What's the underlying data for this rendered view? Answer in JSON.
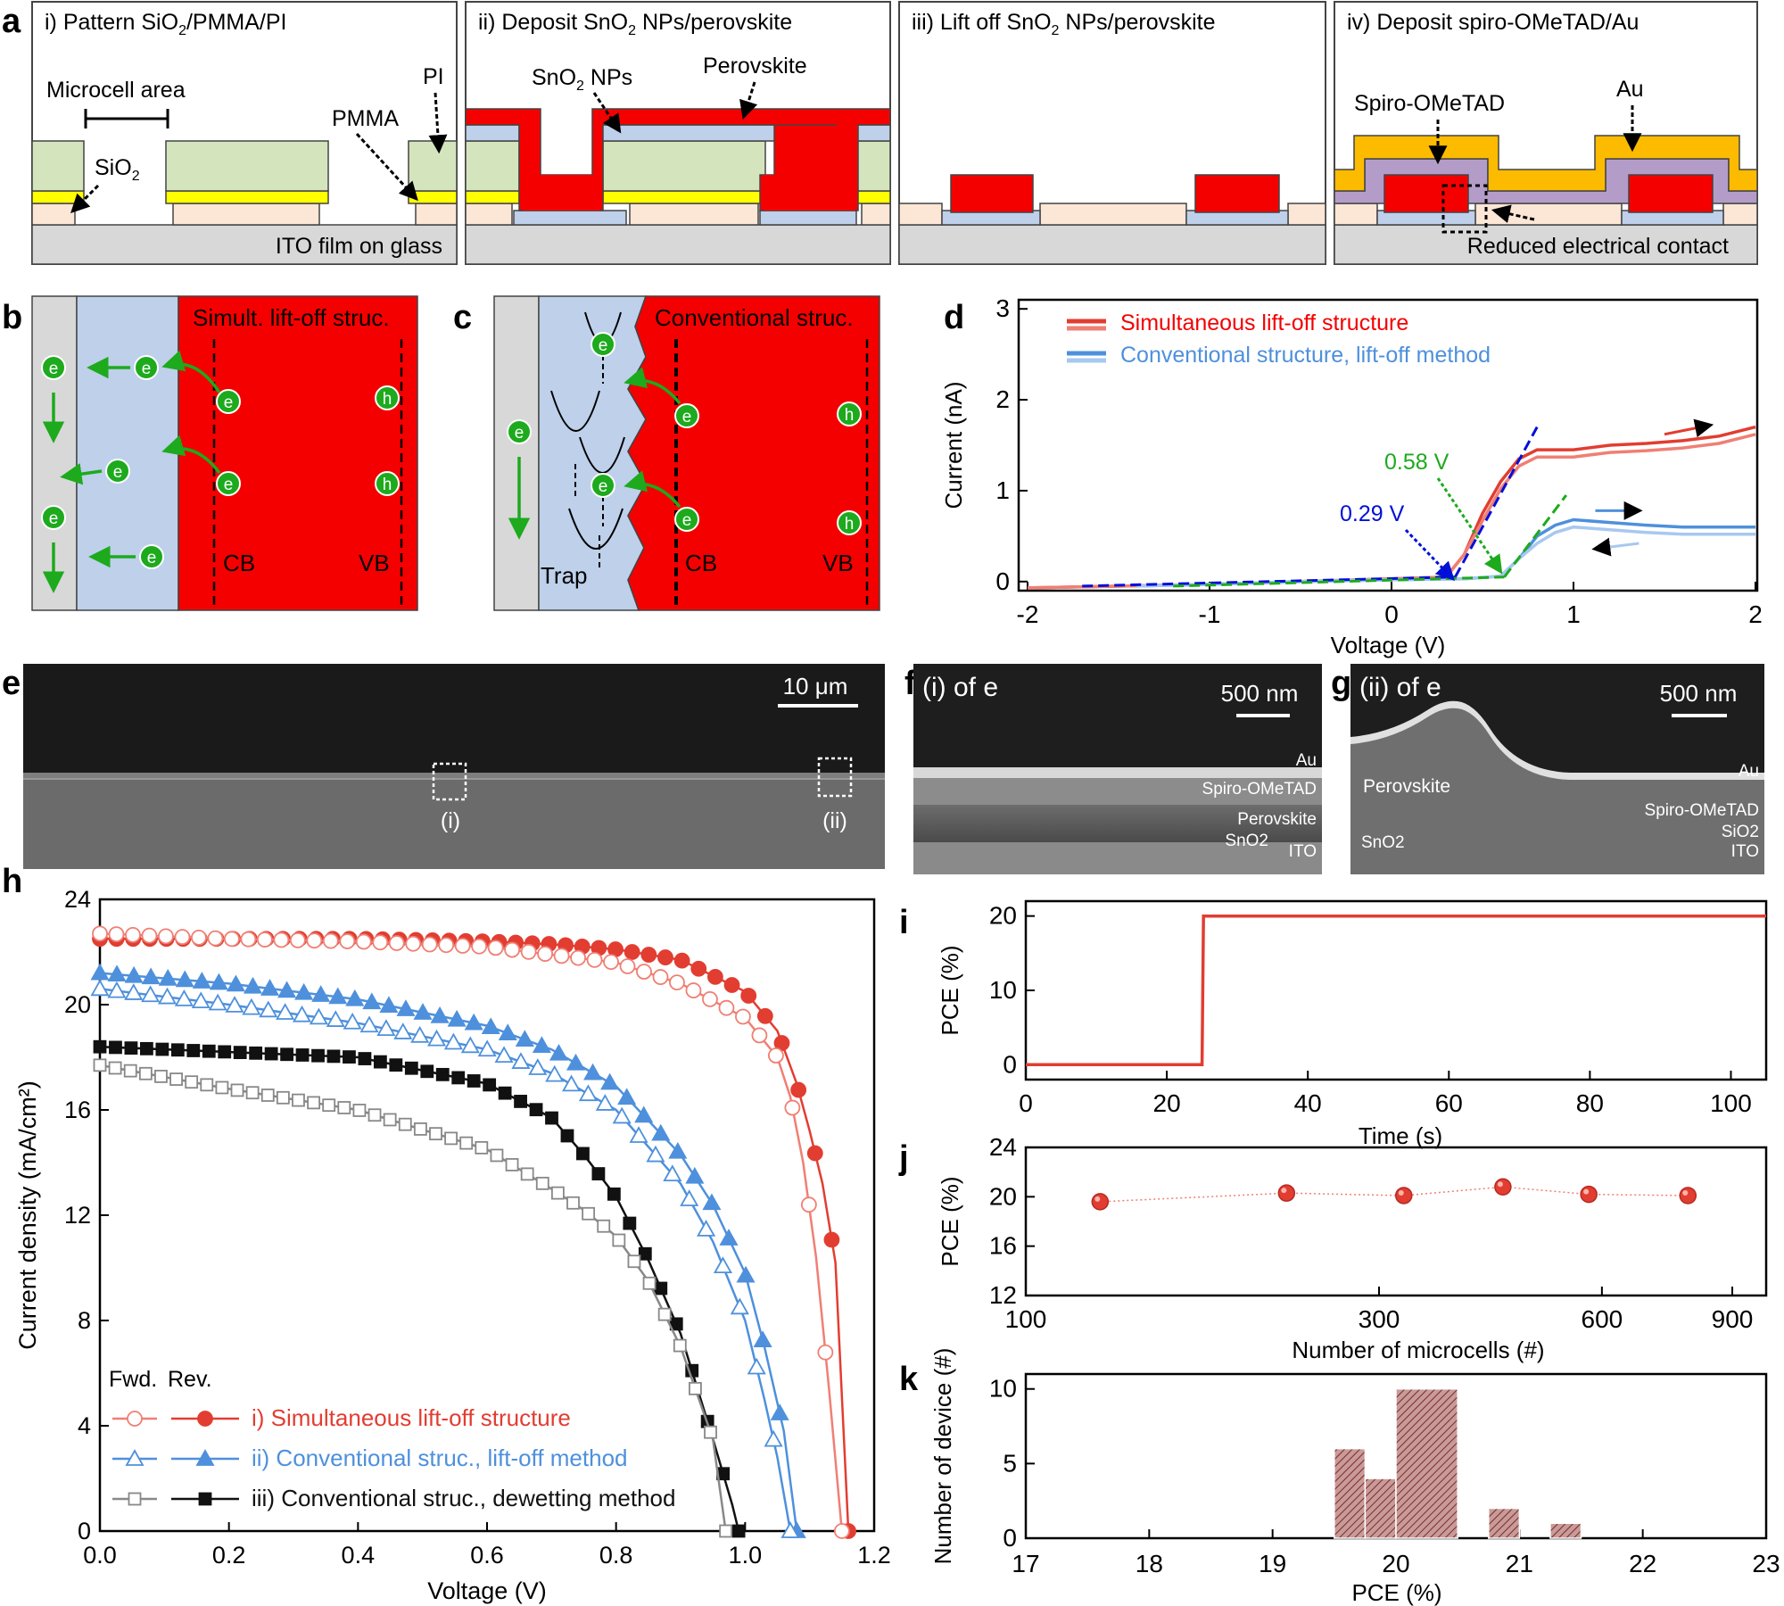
{
  "colors": {
    "red": "#f40000",
    "sio2": "#d4e5bd",
    "yellow": "#ffff00",
    "ito": "#fce6d6",
    "glass": "#d8d8d8",
    "sno2": "#bed0ea",
    "gold": "#fdbb00",
    "spiro": "#b49cc9",
    "green": "#1daa1d",
    "blue_line": "#2b61c8",
    "blue_light": "#6aa4e4",
    "red_dark": "#e23d31",
    "red_light": "#f07f74",
    "gray": "#999999",
    "black": "#111111"
  },
  "panels": {
    "letters": [
      "a",
      "b",
      "c",
      "d",
      "e",
      "f",
      "g",
      "h",
      "i",
      "j",
      "k"
    ],
    "a": {
      "steps": [
        {
          "prefix": "i) Pattern SiO",
          "sub": "2",
          "suffix": "/PMMA/PI"
        },
        {
          "prefix": "ii) Deposit SnO",
          "sub": "2",
          "suffix": " NPs/perovskite"
        },
        {
          "prefix": "iii) Lift off SnO",
          "sub": "2",
          "suffix": " NPs/perovskite"
        },
        {
          "prefix": "iv) Deposit spiro-OMeTAD/Au",
          "sub": "",
          "suffix": ""
        }
      ],
      "labels": {
        "microcell": "Microcell area",
        "sio2": "SiO",
        "sio2_sub": "2",
        "pmma": "PMMA",
        "pi": "PI",
        "ito": "ITO film on glass",
        "sno2": "SnO",
        "sno2_sub": "2",
        "sno2_suffix": " NPs",
        "perovskite": "Perovskite",
        "spiro": "Spiro-OMeTAD",
        "au": "Au",
        "reduced": "Reduced electrical contact"
      }
    },
    "b": {
      "title": "Simult. lift-off struc.",
      "cb": "CB",
      "vb": "VB",
      "e": "e",
      "h": "h"
    },
    "c": {
      "title": "Conventional struc.",
      "cb": "CB",
      "vb": "VB",
      "trap": "Trap",
      "e": "e",
      "h": "h"
    },
    "e": {
      "scale": "10 μm",
      "roi1": "(i)",
      "roi2": "(ii)"
    },
    "f": {
      "title": "(i) of e",
      "scale": "500 nm",
      "layers": [
        "Au",
        "Spiro-OMeTAD",
        "Perovskite",
        "SnO2",
        "ITO"
      ]
    },
    "g": {
      "title": "(ii) of e",
      "scale": "500 nm",
      "layers": [
        "Au",
        "Perovskite",
        "Spiro-OMeTAD",
        "SiO2",
        "SnO2",
        "ITO"
      ]
    }
  },
  "chart_data": [
    {
      "id": "d",
      "type": "line",
      "xlabel": "Voltage (V)",
      "ylabel": "Current (nA)",
      "xlim": [
        -2,
        2
      ],
      "ylim": [
        -0.1,
        3.1
      ],
      "xticks": [
        -2,
        -1,
        0,
        1,
        2
      ],
      "yticks": [
        0,
        1,
        2,
        3
      ],
      "annotations": [
        "0.58 V",
        "0.29 V"
      ],
      "series": [
        {
          "name": "Simultaneous lift-off structure",
          "x": [
            -2,
            -1,
            -0.5,
            0,
            0.3,
            0.4,
            0.5,
            0.6,
            0.7,
            0.8,
            1.0,
            1.2,
            1.4,
            1.6,
            1.8,
            2.0
          ],
          "y": [
            -0.07,
            -0.03,
            0.0,
            0.03,
            0.05,
            0.3,
            0.75,
            1.1,
            1.35,
            1.45,
            1.45,
            1.5,
            1.52,
            1.55,
            1.6,
            1.7
          ]
        },
        {
          "name": "Conventional structure, lift-off method",
          "x": [
            -1.4,
            -1,
            -0.5,
            0,
            0.4,
            0.6,
            0.7,
            0.8,
            0.9,
            1.0,
            1.2,
            1.4,
            1.6,
            1.8,
            2.0
          ],
          "y": [
            -0.05,
            -0.03,
            0.0,
            0.02,
            0.03,
            0.06,
            0.25,
            0.5,
            0.62,
            0.68,
            0.65,
            0.62,
            0.6,
            0.6,
            0.6
          ]
        }
      ]
    },
    {
      "id": "h",
      "type": "line",
      "xlabel": "Voltage (V)",
      "ylabel": "Current density (mA/cm²)",
      "xlim": [
        0,
        1.2
      ],
      "ylim": [
        0,
        24
      ],
      "xticks": [
        0.0,
        0.2,
        0.4,
        0.6,
        0.8,
        1.0,
        1.2
      ],
      "yticks": [
        0,
        4,
        8,
        12,
        16,
        20,
        24
      ],
      "legend_header": [
        "Fwd.",
        "Rev."
      ],
      "series": [
        {
          "name": "i) Simultaneous lift-off structure",
          "sweep": "Rev",
          "x": [
            0,
            0.2,
            0.4,
            0.6,
            0.7,
            0.8,
            0.9,
            1.0,
            1.05,
            1.08,
            1.1,
            1.12,
            1.14,
            1.16
          ],
          "y": [
            22.5,
            22.5,
            22.5,
            22.4,
            22.3,
            22.1,
            21.7,
            20.5,
            19.0,
            17.0,
            15.2,
            13.2,
            10.2,
            0
          ]
        },
        {
          "name": "i) Simultaneous lift-off structure",
          "sweep": "Fwd",
          "x": [
            0,
            0.2,
            0.4,
            0.6,
            0.7,
            0.8,
            0.9,
            1.0,
            1.05,
            1.07,
            1.09,
            1.11,
            1.13,
            1.15
          ],
          "y": [
            22.7,
            22.5,
            22.4,
            22.2,
            21.9,
            21.6,
            20.8,
            19.5,
            18.0,
            16.5,
            14.0,
            10.4,
            5.4,
            0
          ]
        },
        {
          "name": "ii) Conventional struc., lift-off method",
          "sweep": "Rev",
          "x": [
            0,
            0.2,
            0.4,
            0.6,
            0.7,
            0.8,
            0.9,
            0.95,
            1.0,
            1.03,
            1.06,
            1.08
          ],
          "y": [
            21.2,
            20.8,
            20.2,
            19.2,
            18.3,
            16.9,
            14.3,
            12.4,
            9.8,
            7.0,
            3.8,
            0
          ]
        },
        {
          "name": "ii) Conventional struc., lift-off method",
          "sweep": "Fwd",
          "x": [
            0,
            0.2,
            0.4,
            0.6,
            0.7,
            0.8,
            0.9,
            0.95,
            1.0,
            1.03,
            1.05,
            1.07
          ],
          "y": [
            20.6,
            20.0,
            19.3,
            18.3,
            17.4,
            16.0,
            13.2,
            11.0,
            8.0,
            5.0,
            2.8,
            0
          ]
        },
        {
          "name": "iii) Conventional struc., dewetting method",
          "sweep": "Rev",
          "x": [
            0,
            0.2,
            0.4,
            0.6,
            0.7,
            0.75,
            0.8,
            0.85,
            0.9,
            0.95,
            0.98,
            0.99
          ],
          "y": [
            18.4,
            18.2,
            18.0,
            17.0,
            15.7,
            14.3,
            12.7,
            10.3,
            7.5,
            3.5,
            1.0,
            0
          ]
        },
        {
          "name": "iii) Conventional struc., dewetting method",
          "sweep": "Fwd",
          "x": [
            0,
            0.2,
            0.4,
            0.6,
            0.7,
            0.75,
            0.8,
            0.85,
            0.9,
            0.95,
            0.97
          ],
          "y": [
            17.7,
            16.8,
            16.0,
            14.5,
            13.0,
            12.2,
            11.2,
            9.5,
            7.0,
            3.5,
            0
          ]
        }
      ]
    },
    {
      "id": "i",
      "type": "line",
      "xlabel": "Time (s)",
      "ylabel": "PCE (%)",
      "xlim": [
        0,
        105
      ],
      "ylim": [
        -2,
        22
      ],
      "xticks": [
        0,
        20,
        40,
        60,
        80,
        100
      ],
      "yticks": [
        0,
        10,
        20
      ],
      "series": [
        {
          "name": "PCE",
          "x": [
            0,
            25,
            25.2,
            105
          ],
          "y": [
            0,
            0,
            20,
            20
          ]
        }
      ]
    },
    {
      "id": "j",
      "type": "scatter",
      "xlabel": "Number of microcells (#)",
      "ylabel": "PCE (%)",
      "xscale": "log",
      "xlim": [
        100,
        1000
      ],
      "ylim": [
        12,
        24
      ],
      "xticks": [
        100,
        300,
        600,
        900
      ],
      "yticks": [
        12,
        16,
        20,
        24
      ],
      "series": [
        {
          "name": "PCE",
          "x": [
            126,
            225,
            324,
            441,
            576,
            784
          ],
          "y": [
            19.6,
            20.3,
            20.1,
            20.8,
            20.2,
            20.1
          ]
        }
      ]
    },
    {
      "id": "k",
      "type": "bar",
      "xlabel": "PCE (%)",
      "ylabel": "Number of device (#)",
      "xlim": [
        17,
        23
      ],
      "ylim": [
        0,
        11
      ],
      "xticks": [
        17,
        18,
        19,
        20,
        21,
        22,
        23
      ],
      "yticks": [
        0,
        5,
        10
      ],
      "bins": [
        [
          19.5,
          19.75
        ],
        [
          19.75,
          20.0
        ],
        [
          20.0,
          20.5
        ],
        [
          20.5,
          20.75
        ],
        [
          20.75,
          21.0
        ],
        [
          21.0,
          21.25
        ],
        [
          21.25,
          21.5
        ]
      ],
      "values": [
        6,
        4,
        10,
        0,
        2,
        0,
        1
      ]
    }
  ]
}
